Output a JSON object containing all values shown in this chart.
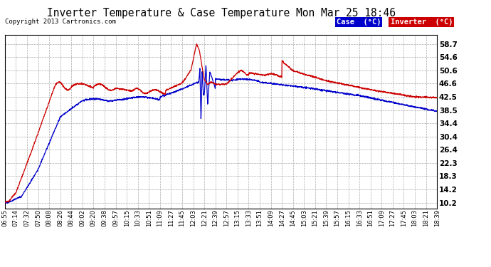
{
  "title": "Inverter Temperature & Case Temperature Mon Mar 25 18:46",
  "copyright": "Copyright 2013 Cartronics.com",
  "y_ticks": [
    10.2,
    14.2,
    18.3,
    22.3,
    26.4,
    30.4,
    34.4,
    38.5,
    42.5,
    46.6,
    50.6,
    54.6,
    58.7
  ],
  "ylim": [
    8.5,
    61.5
  ],
  "legend_case_label": "Case  (°C)",
  "legend_inverter_label": "Inverter  (°C)",
  "legend_case_bg": "#0000cc",
  "legend_inverter_bg": "#cc0000",
  "line_case_color": "#0000cc",
  "line_inverter_color": "#cc0000",
  "background_color": "#ffffff",
  "grid_color": "#aaaaaa",
  "x_labels": [
    "06:55",
    "07:14",
    "07:32",
    "07:50",
    "08:08",
    "08:26",
    "08:44",
    "09:02",
    "09:20",
    "09:38",
    "09:57",
    "10:15",
    "10:33",
    "10:51",
    "11:09",
    "11:27",
    "11:45",
    "12:03",
    "12:21",
    "12:39",
    "12:57",
    "13:15",
    "13:33",
    "13:51",
    "14:09",
    "14:27",
    "14:45",
    "15:03",
    "15:21",
    "15:39",
    "15:57",
    "16:15",
    "16:33",
    "16:51",
    "17:09",
    "17:27",
    "17:45",
    "18:03",
    "18:21",
    "18:39"
  ]
}
